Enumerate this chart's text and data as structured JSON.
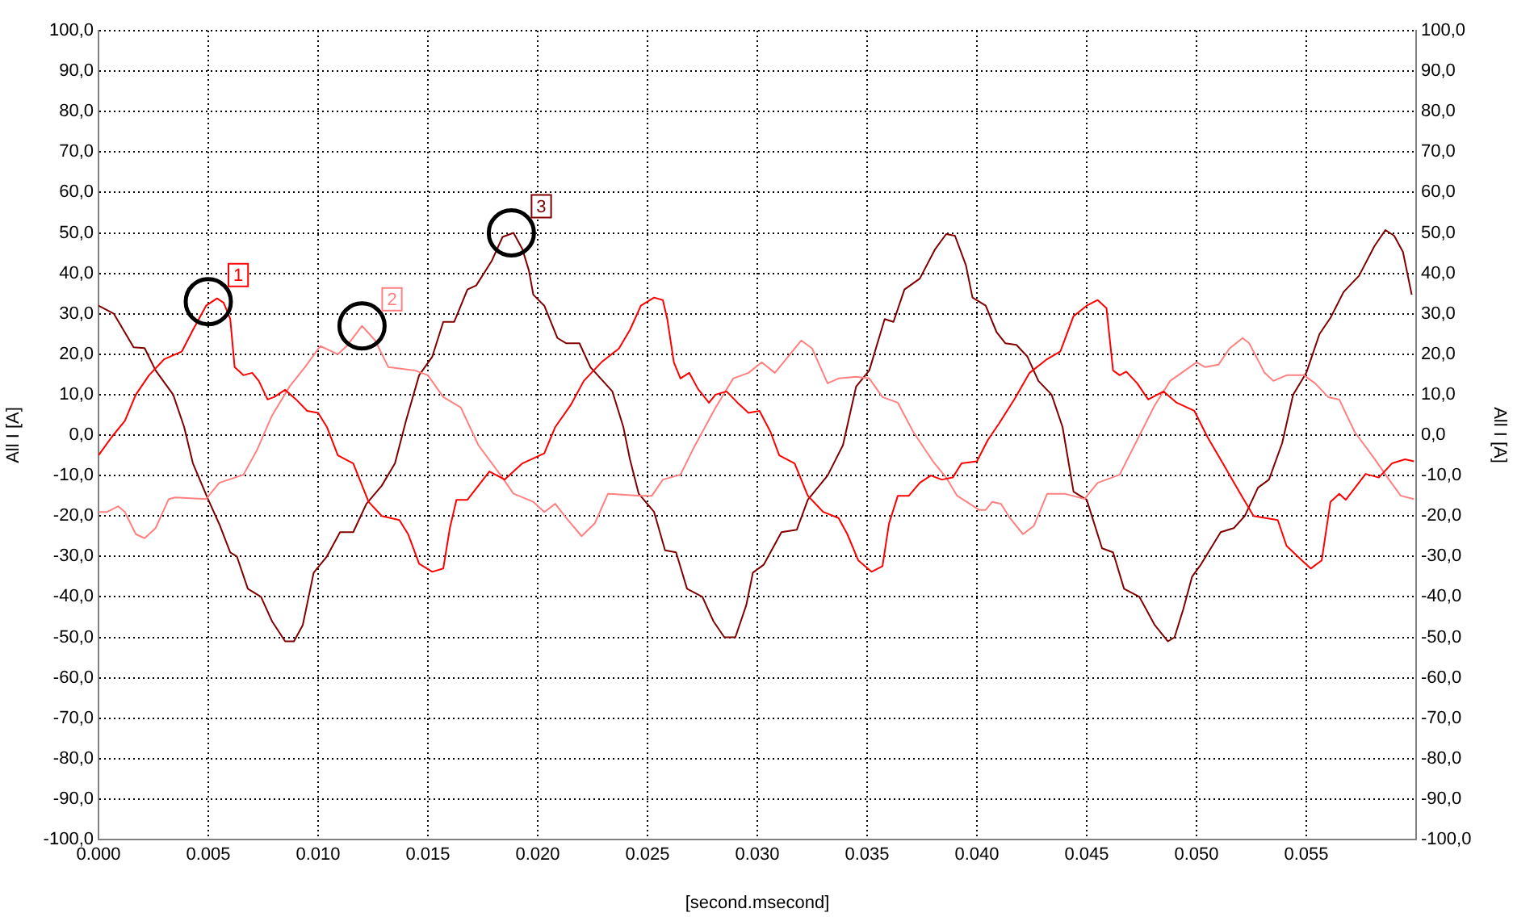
{
  "chart_data": {
    "type": "line",
    "xlabel": "[second.msecond]",
    "ylabel": "All I [A]",
    "y2label": "All I [A]",
    "grid": true,
    "xlim": [
      0,
      0.06
    ],
    "xticks": [
      {
        "value": 0,
        "label": "0.000"
      },
      {
        "value": 0.005,
        "label": "0.005"
      },
      {
        "value": 0.01,
        "label": "0.010"
      },
      {
        "value": 0.015,
        "label": "0.015"
      },
      {
        "value": 0.02,
        "label": "0.020"
      },
      {
        "value": 0.025,
        "label": "0.025"
      },
      {
        "value": 0.03,
        "label": "0.030"
      },
      {
        "value": 0.035,
        "label": "0.035"
      },
      {
        "value": 0.04,
        "label": "0.040"
      },
      {
        "value": 0.045,
        "label": "0.045"
      },
      {
        "value": 0.05,
        "label": "0.050"
      },
      {
        "value": 0.055,
        "label": "0.055"
      }
    ],
    "ylim": [
      -100,
      100
    ],
    "yticks": [
      {
        "value": -100,
        "label": "-100,0"
      },
      {
        "value": -90,
        "label": "-90,0"
      },
      {
        "value": -80,
        "label": "-80,0"
      },
      {
        "value": -70,
        "label": "-70,0"
      },
      {
        "value": -60,
        "label": "-60,0"
      },
      {
        "value": -50,
        "label": "-50,0"
      },
      {
        "value": -40,
        "label": "-40,0"
      },
      {
        "value": -30,
        "label": "-30,0"
      },
      {
        "value": -20,
        "label": "-20,0"
      },
      {
        "value": -10,
        "label": "-10,0"
      },
      {
        "value": 0,
        "label": "0,0"
      },
      {
        "value": 10,
        "label": "10,0"
      },
      {
        "value": 20,
        "label": "20,0"
      },
      {
        "value": 30,
        "label": "30,0"
      },
      {
        "value": 40,
        "label": "40,0"
      },
      {
        "value": 50,
        "label": "50,0"
      },
      {
        "value": 60,
        "label": "60,0"
      },
      {
        "value": 70,
        "label": "70,0"
      },
      {
        "value": 80,
        "label": "80,0"
      },
      {
        "value": 90,
        "label": "90,0"
      },
      {
        "value": 100,
        "label": "100,0"
      }
    ],
    "y2lim": [
      -100,
      100
    ],
    "y2ticks": [
      {
        "value": -100,
        "label": "-100,0"
      },
      {
        "value": -90,
        "label": "-90,0"
      },
      {
        "value": -80,
        "label": "-80,0"
      },
      {
        "value": -70,
        "label": "-70,0"
      },
      {
        "value": -60,
        "label": "-60,0"
      },
      {
        "value": -50,
        "label": "-50,0"
      },
      {
        "value": -40,
        "label": "-40,0"
      },
      {
        "value": -30,
        "label": "-30,0"
      },
      {
        "value": -20,
        "label": "-20,0"
      },
      {
        "value": -10,
        "label": "-10,0"
      },
      {
        "value": 0,
        "label": "0,0"
      },
      {
        "value": 10,
        "label": "10,0"
      },
      {
        "value": 20,
        "label": "20,0"
      },
      {
        "value": 30,
        "label": "30,0"
      },
      {
        "value": 40,
        "label": "40,0"
      },
      {
        "value": 50,
        "label": "50,0"
      },
      {
        "value": 60,
        "label": "60,0"
      },
      {
        "value": 70,
        "label": "70,0"
      },
      {
        "value": 80,
        "label": "80,0"
      },
      {
        "value": 90,
        "label": "90,0"
      },
      {
        "value": 100,
        "label": "100,0"
      }
    ],
    "annotations": [
      {
        "text": "1",
        "x": 0.005,
        "y": 33
      },
      {
        "text": "2",
        "x": 0.012,
        "y": 27
      },
      {
        "text": "3",
        "x": 0.0188,
        "y": 50
      }
    ],
    "series": [
      {
        "color": "#ff0000",
        "x": [
          0,
          0.0006,
          0.0012,
          0.0017,
          0.0023,
          0.003,
          0.0038,
          0.0043,
          0.0049,
          0.0054,
          0.0057,
          0.006,
          0.0062,
          0.0066,
          0.007,
          0.0073,
          0.0077,
          0.008,
          0.0085,
          0.009,
          0.0095,
          0.01,
          0.0104,
          0.0109,
          0.0116,
          0.0123,
          0.0129,
          0.0137,
          0.0141,
          0.0146,
          0.0152,
          0.0157,
          0.016,
          0.0163,
          0.0168,
          0.0173,
          0.0178,
          0.0185,
          0.0193,
          0.0203,
          0.0208,
          0.0215,
          0.0221,
          0.0229,
          0.0237,
          0.0242,
          0.0247,
          0.0253,
          0.0257,
          0.0259,
          0.0262,
          0.0265,
          0.0269,
          0.0273,
          0.0278,
          0.0281,
          0.0286,
          0.0291,
          0.0296,
          0.0301,
          0.0306,
          0.031,
          0.0317,
          0.0323,
          0.033,
          0.0337,
          0.0341,
          0.0346,
          0.0352,
          0.0357,
          0.036,
          0.0364,
          0.0369,
          0.0374,
          0.0379,
          0.0384,
          0.0389,
          0.0393,
          0.04,
          0.0405,
          0.041,
          0.0417,
          0.0424,
          0.0432,
          0.0438,
          0.0444,
          0.045,
          0.0455,
          0.0459,
          0.0462,
          0.0465,
          0.0468,
          0.0473,
          0.0478,
          0.0485,
          0.0491,
          0.0499,
          0.0505,
          0.0512,
          0.052,
          0.0526,
          0.0537,
          0.0541,
          0.0548,
          0.0552,
          0.0557,
          0.0561,
          0.0565,
          0.0568,
          0.0577,
          0.0583,
          0.0589,
          0.0595,
          0.0599
        ],
        "values": [
          -5,
          -0.5,
          3.5,
          10,
          14.8,
          18.8,
          20.7,
          26,
          32,
          33.8,
          32.7,
          28.7,
          16.8,
          14.8,
          15.4,
          13.4,
          8.8,
          9.4,
          11.2,
          8.8,
          6,
          5.5,
          2,
          -5,
          -7,
          -16.5,
          -20,
          -21,
          -24.5,
          -31.8,
          -33.8,
          -33,
          -23,
          -16,
          -16,
          -12.5,
          -9,
          -11,
          -7,
          -4.5,
          2,
          7.4,
          13.4,
          18,
          21.4,
          26,
          32,
          34,
          33.4,
          28.7,
          18,
          14,
          15.4,
          11.4,
          8,
          10,
          10.8,
          8,
          5.5,
          6,
          0.8,
          -5,
          -7,
          -15,
          -19,
          -20.5,
          -24.5,
          -31,
          -33.8,
          -32.4,
          -21.8,
          -15,
          -15,
          -11.8,
          -10,
          -11,
          -10.5,
          -7,
          -6.5,
          -1.2,
          2.8,
          8.8,
          15.4,
          18.8,
          20.7,
          29.4,
          32,
          33.4,
          31.4,
          16,
          14.8,
          15.7,
          12.8,
          8.8,
          10.8,
          8,
          6,
          -0.5,
          -7,
          -14.5,
          -20,
          -21,
          -27.4,
          -31,
          -33,
          -31,
          -16.5,
          -14.5,
          -16,
          -9.6,
          -10.5,
          -7,
          -6,
          -6.5
        ]
      },
      {
        "color": "#ff8080",
        "x": [
          0,
          0.0004,
          0.0009,
          0.0012,
          0.0017,
          0.0021,
          0.0026,
          0.0032,
          0.0035,
          0.0049,
          0.0055,
          0.0066,
          0.0072,
          0.0079,
          0.0087,
          0.0094,
          0.0101,
          0.0109,
          0.0113,
          0.012,
          0.0126,
          0.0132,
          0.0144,
          0.015,
          0.0157,
          0.0165,
          0.0173,
          0.0183,
          0.0189,
          0.0198,
          0.0203,
          0.0208,
          0.0213,
          0.022,
          0.0226,
          0.0232,
          0.0247,
          0.0252,
          0.0257,
          0.0265,
          0.0271,
          0.0281,
          0.0289,
          0.0296,
          0.0302,
          0.0308,
          0.0314,
          0.032,
          0.0325,
          0.0332,
          0.0337,
          0.0345,
          0.0351,
          0.0357,
          0.0364,
          0.0371,
          0.038,
          0.0386,
          0.0391,
          0.0401,
          0.0404,
          0.0407,
          0.0411,
          0.0415,
          0.0421,
          0.0426,
          0.0432,
          0.044,
          0.0449,
          0.0455,
          0.0465,
          0.0473,
          0.0481,
          0.0488,
          0.0494,
          0.05,
          0.0504,
          0.051,
          0.0515,
          0.0521,
          0.0524,
          0.0531,
          0.0535,
          0.0541,
          0.0549,
          0.0554,
          0.056,
          0.0565,
          0.0572,
          0.0581,
          0.0587,
          0.0593,
          0.0599
        ],
        "values": [
          -19,
          -19,
          -17.6,
          -19,
          -24.5,
          -25.5,
          -23,
          -15.8,
          -15.4,
          -15.8,
          -11.8,
          -9.8,
          -3.9,
          4.8,
          12,
          16.8,
          22,
          20,
          22,
          27,
          23.4,
          16.8,
          16,
          14.8,
          9.4,
          6.8,
          -2.5,
          -9.8,
          -14.5,
          -16.5,
          -19,
          -17,
          -20.5,
          -25,
          -21.8,
          -14.5,
          -15,
          -15,
          -11,
          -9.8,
          -3.2,
          6.8,
          14,
          15.4,
          18,
          15.4,
          19.4,
          23.4,
          21.4,
          12.8,
          14,
          14.4,
          14,
          9.4,
          8,
          0.8,
          -6.5,
          -10.5,
          -15,
          -18.5,
          -18.5,
          -16.5,
          -17,
          -20.5,
          -24.5,
          -22.4,
          -14.5,
          -14.5,
          -15.8,
          -11.8,
          -9.8,
          -1.2,
          7.4,
          13.4,
          15.7,
          18,
          16.8,
          17.4,
          21.4,
          24,
          22.7,
          15.4,
          13.4,
          14.8,
          14.8,
          12.8,
          9.4,
          8.8,
          0.8,
          -5.8,
          -10.5,
          -15,
          -15.8
        ]
      },
      {
        "color": "#800000",
        "x": [
          0,
          0.0007,
          0.0016,
          0.0021,
          0.0026,
          0.0034,
          0.0039,
          0.0043,
          0.005,
          0.0055,
          0.006,
          0.0063,
          0.0068,
          0.0074,
          0.0079,
          0.0085,
          0.0089,
          0.0093,
          0.0098,
          0.0104,
          0.011,
          0.0116,
          0.0122,
          0.0129,
          0.0135,
          0.014,
          0.0146,
          0.0152,
          0.0157,
          0.0162,
          0.0168,
          0.0172,
          0.0179,
          0.0184,
          0.0189,
          0.0193,
          0.0196,
          0.0198,
          0.0203,
          0.0209,
          0.0213,
          0.0219,
          0.0224,
          0.0234,
          0.0239,
          0.0242,
          0.0246,
          0.0253,
          0.0258,
          0.0263,
          0.0268,
          0.0275,
          0.028,
          0.0285,
          0.029,
          0.0295,
          0.0298,
          0.0303,
          0.0311,
          0.0318,
          0.0323,
          0.0332,
          0.0339,
          0.0345,
          0.0351,
          0.0358,
          0.0362,
          0.0367,
          0.0374,
          0.0381,
          0.0386,
          0.039,
          0.0395,
          0.0398,
          0.0404,
          0.0409,
          0.0413,
          0.0418,
          0.0423,
          0.0428,
          0.0434,
          0.0439,
          0.0444,
          0.045,
          0.0457,
          0.0462,
          0.0467,
          0.0474,
          0.0481,
          0.0487,
          0.049,
          0.0494,
          0.0498,
          0.0502,
          0.0511,
          0.0517,
          0.0522,
          0.0528,
          0.0533,
          0.0539,
          0.0544,
          0.055,
          0.0556,
          0.0561,
          0.0567,
          0.0574,
          0.0581,
          0.0586,
          0.059,
          0.0594,
          0.0598
        ],
        "values": [
          32,
          30,
          21.7,
          21.5,
          16,
          10,
          2,
          -7,
          -16,
          -22,
          -29,
          -30,
          -38,
          -40,
          -46,
          -51,
          -51,
          -47,
          -34,
          -30,
          -24,
          -24,
          -17,
          -12.5,
          -7,
          3.5,
          14.8,
          19.4,
          28,
          28,
          36,
          37,
          43,
          49,
          50,
          46,
          40.7,
          34.7,
          32,
          24,
          22.7,
          22.7,
          16.8,
          10.8,
          2,
          -6,
          -14.5,
          -19,
          -28.5,
          -29,
          -38,
          -40,
          -46,
          -50,
          -50,
          -42,
          -34,
          -32,
          -24,
          -23.4,
          -16,
          -10,
          -2.5,
          12,
          16,
          28.7,
          28,
          36,
          38.7,
          46,
          49.7,
          49.3,
          42,
          34,
          32,
          25.4,
          22.7,
          22.3,
          19.4,
          13.4,
          10,
          2,
          -14,
          -16,
          -28,
          -29,
          -38,
          -40,
          -47,
          -51,
          -50,
          -43,
          -35,
          -32,
          -24,
          -23,
          -20,
          -13,
          -11,
          -2,
          10,
          15.4,
          25,
          29,
          35.4,
          39.4,
          46.7,
          50.7,
          49.3,
          45.3,
          34.7
        ]
      }
    ]
  }
}
